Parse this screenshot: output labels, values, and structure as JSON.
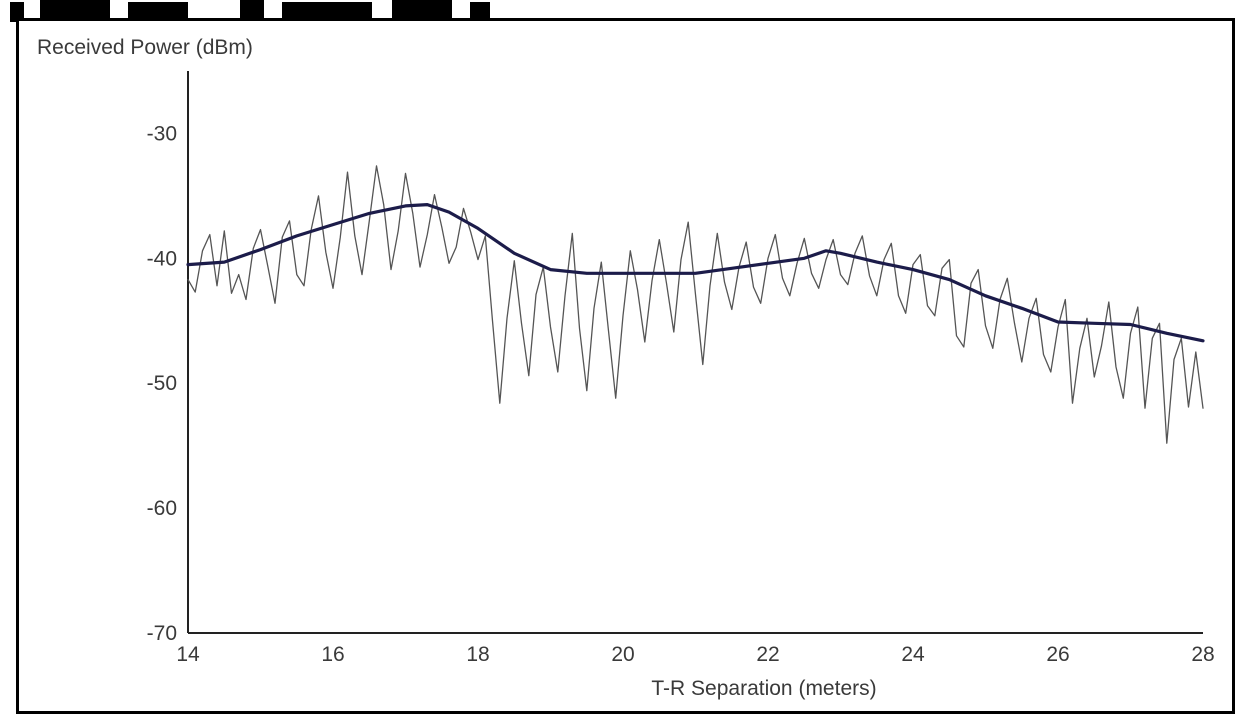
{
  "chart_data": {
    "type": "line",
    "ylabel": "Received Power (dBm)",
    "xlabel": "T-R Separation (meters)",
    "xlim": [
      14,
      28
    ],
    "ylim": [
      -70,
      -25
    ],
    "xticks": [
      "14",
      "16",
      "18",
      "20",
      "22",
      "24",
      "26",
      "28"
    ],
    "yticks": [
      "-30",
      "-40",
      "-50",
      "-60",
      "-70"
    ],
    "grid": false,
    "series": [
      {
        "style": "thin-fading",
        "color": "#555555",
        "points": [
          [
            14.0,
            -41.7
          ],
          [
            14.1,
            -42.7
          ],
          [
            14.2,
            -39.4
          ],
          [
            14.3,
            -38.1
          ],
          [
            14.4,
            -42.2
          ],
          [
            14.5,
            -37.8
          ],
          [
            14.6,
            -42.8
          ],
          [
            14.7,
            -41.3
          ],
          [
            14.8,
            -43.3
          ],
          [
            14.9,
            -39.2
          ],
          [
            15.0,
            -37.7
          ],
          [
            15.1,
            -40.6
          ],
          [
            15.2,
            -43.6
          ],
          [
            15.3,
            -38.3
          ],
          [
            15.4,
            -37.0
          ],
          [
            15.5,
            -41.3
          ],
          [
            15.6,
            -42.2
          ],
          [
            15.7,
            -37.7
          ],
          [
            15.8,
            -35.0
          ],
          [
            15.9,
            -39.5
          ],
          [
            16.0,
            -42.4
          ],
          [
            16.1,
            -38.3
          ],
          [
            16.2,
            -33.1
          ],
          [
            16.3,
            -38.2
          ],
          [
            16.4,
            -41.3
          ],
          [
            16.5,
            -37.0
          ],
          [
            16.6,
            -32.6
          ],
          [
            16.7,
            -35.7
          ],
          [
            16.8,
            -40.9
          ],
          [
            16.9,
            -37.8
          ],
          [
            17.0,
            -33.2
          ],
          [
            17.1,
            -36.4
          ],
          [
            17.2,
            -40.7
          ],
          [
            17.3,
            -38.1
          ],
          [
            17.4,
            -34.9
          ],
          [
            17.5,
            -37.5
          ],
          [
            17.6,
            -40.4
          ],
          [
            17.7,
            -39.1
          ],
          [
            17.8,
            -36.0
          ],
          [
            17.9,
            -37.9
          ],
          [
            18.0,
            -40.1
          ],
          [
            18.1,
            -38.2
          ],
          [
            18.2,
            -45.0
          ],
          [
            18.3,
            -51.6
          ],
          [
            18.4,
            -44.8
          ],
          [
            18.5,
            -40.2
          ],
          [
            18.6,
            -45.2
          ],
          [
            18.7,
            -49.4
          ],
          [
            18.8,
            -42.9
          ],
          [
            18.9,
            -40.7
          ],
          [
            19.0,
            -45.5
          ],
          [
            19.1,
            -49.1
          ],
          [
            19.2,
            -43.0
          ],
          [
            19.3,
            -38.0
          ],
          [
            19.4,
            -45.6
          ],
          [
            19.5,
            -50.6
          ],
          [
            19.6,
            -44.0
          ],
          [
            19.7,
            -40.3
          ],
          [
            19.8,
            -45.8
          ],
          [
            19.9,
            -51.2
          ],
          [
            20.0,
            -44.6
          ],
          [
            20.1,
            -39.4
          ],
          [
            20.2,
            -42.5
          ],
          [
            20.3,
            -46.7
          ],
          [
            20.4,
            -41.8
          ],
          [
            20.5,
            -38.5
          ],
          [
            20.6,
            -42.0
          ],
          [
            20.7,
            -45.9
          ],
          [
            20.8,
            -40.1
          ],
          [
            20.9,
            -37.1
          ],
          [
            21.0,
            -42.9
          ],
          [
            21.1,
            -48.5
          ],
          [
            21.2,
            -42.2
          ],
          [
            21.3,
            -38.0
          ],
          [
            21.4,
            -41.9
          ],
          [
            21.5,
            -44.1
          ],
          [
            21.6,
            -40.7
          ],
          [
            21.7,
            -38.7
          ],
          [
            21.8,
            -42.3
          ],
          [
            21.9,
            -43.6
          ],
          [
            22.0,
            -40.0
          ],
          [
            22.1,
            -38.1
          ],
          [
            22.2,
            -41.6
          ],
          [
            22.3,
            -43.0
          ],
          [
            22.4,
            -40.4
          ],
          [
            22.5,
            -38.4
          ],
          [
            22.6,
            -41.2
          ],
          [
            22.7,
            -42.4
          ],
          [
            22.8,
            -40.1
          ],
          [
            22.9,
            -38.5
          ],
          [
            23.0,
            -41.3
          ],
          [
            23.1,
            -42.1
          ],
          [
            23.2,
            -39.6
          ],
          [
            23.3,
            -38.2
          ],
          [
            23.4,
            -41.4
          ],
          [
            23.5,
            -43.0
          ],
          [
            23.6,
            -40.1
          ],
          [
            23.7,
            -38.8
          ],
          [
            23.8,
            -43.0
          ],
          [
            23.9,
            -44.4
          ],
          [
            24.0,
            -40.5
          ],
          [
            24.1,
            -39.7
          ],
          [
            24.2,
            -43.8
          ],
          [
            24.3,
            -44.6
          ],
          [
            24.4,
            -40.8
          ],
          [
            24.5,
            -40.1
          ],
          [
            24.6,
            -46.2
          ],
          [
            24.7,
            -47.1
          ],
          [
            24.8,
            -42.0
          ],
          [
            24.9,
            -40.9
          ],
          [
            25.0,
            -45.4
          ],
          [
            25.1,
            -47.2
          ],
          [
            25.2,
            -43.3
          ],
          [
            25.3,
            -41.6
          ],
          [
            25.4,
            -45.2
          ],
          [
            25.5,
            -48.3
          ],
          [
            25.6,
            -44.8
          ],
          [
            25.7,
            -43.2
          ],
          [
            25.8,
            -47.7
          ],
          [
            25.9,
            -49.1
          ],
          [
            26.0,
            -45.5
          ],
          [
            26.1,
            -43.3
          ],
          [
            26.2,
            -51.6
          ],
          [
            26.3,
            -47.2
          ],
          [
            26.4,
            -44.8
          ],
          [
            26.5,
            -49.5
          ],
          [
            26.6,
            -47.0
          ],
          [
            26.7,
            -43.5
          ],
          [
            26.8,
            -48.7
          ],
          [
            26.9,
            -51.2
          ],
          [
            27.0,
            -46.0
          ],
          [
            27.1,
            -43.9
          ],
          [
            27.2,
            -52.0
          ],
          [
            27.3,
            -46.4
          ],
          [
            27.4,
            -45.2
          ],
          [
            27.5,
            -54.8
          ],
          [
            27.6,
            -48.1
          ],
          [
            27.7,
            -46.4
          ],
          [
            27.8,
            -51.9
          ],
          [
            27.9,
            -47.5
          ],
          [
            28.0,
            -52.0
          ]
        ]
      },
      {
        "style": "thick-smooth",
        "color": "#1c1c4a",
        "points": [
          [
            14.0,
            -40.5
          ],
          [
            14.5,
            -40.3
          ],
          [
            15.0,
            -39.3
          ],
          [
            15.5,
            -38.2
          ],
          [
            16.0,
            -37.3
          ],
          [
            16.5,
            -36.4
          ],
          [
            17.0,
            -35.8
          ],
          [
            17.3,
            -35.7
          ],
          [
            17.6,
            -36.3
          ],
          [
            18.0,
            -37.6
          ],
          [
            18.5,
            -39.6
          ],
          [
            19.0,
            -40.9
          ],
          [
            19.5,
            -41.2
          ],
          [
            20.0,
            -41.2
          ],
          [
            20.5,
            -41.2
          ],
          [
            21.0,
            -41.2
          ],
          [
            21.5,
            -40.8
          ],
          [
            22.0,
            -40.4
          ],
          [
            22.5,
            -40.0
          ],
          [
            22.8,
            -39.4
          ],
          [
            23.0,
            -39.6
          ],
          [
            23.5,
            -40.3
          ],
          [
            24.0,
            -40.9
          ],
          [
            24.5,
            -41.7
          ],
          [
            25.0,
            -43.0
          ],
          [
            25.5,
            -44.0
          ],
          [
            26.0,
            -45.1
          ],
          [
            26.5,
            -45.2
          ],
          [
            27.0,
            -45.3
          ],
          [
            27.5,
            -46.0
          ],
          [
            28.0,
            -46.6
          ]
        ]
      }
    ]
  }
}
